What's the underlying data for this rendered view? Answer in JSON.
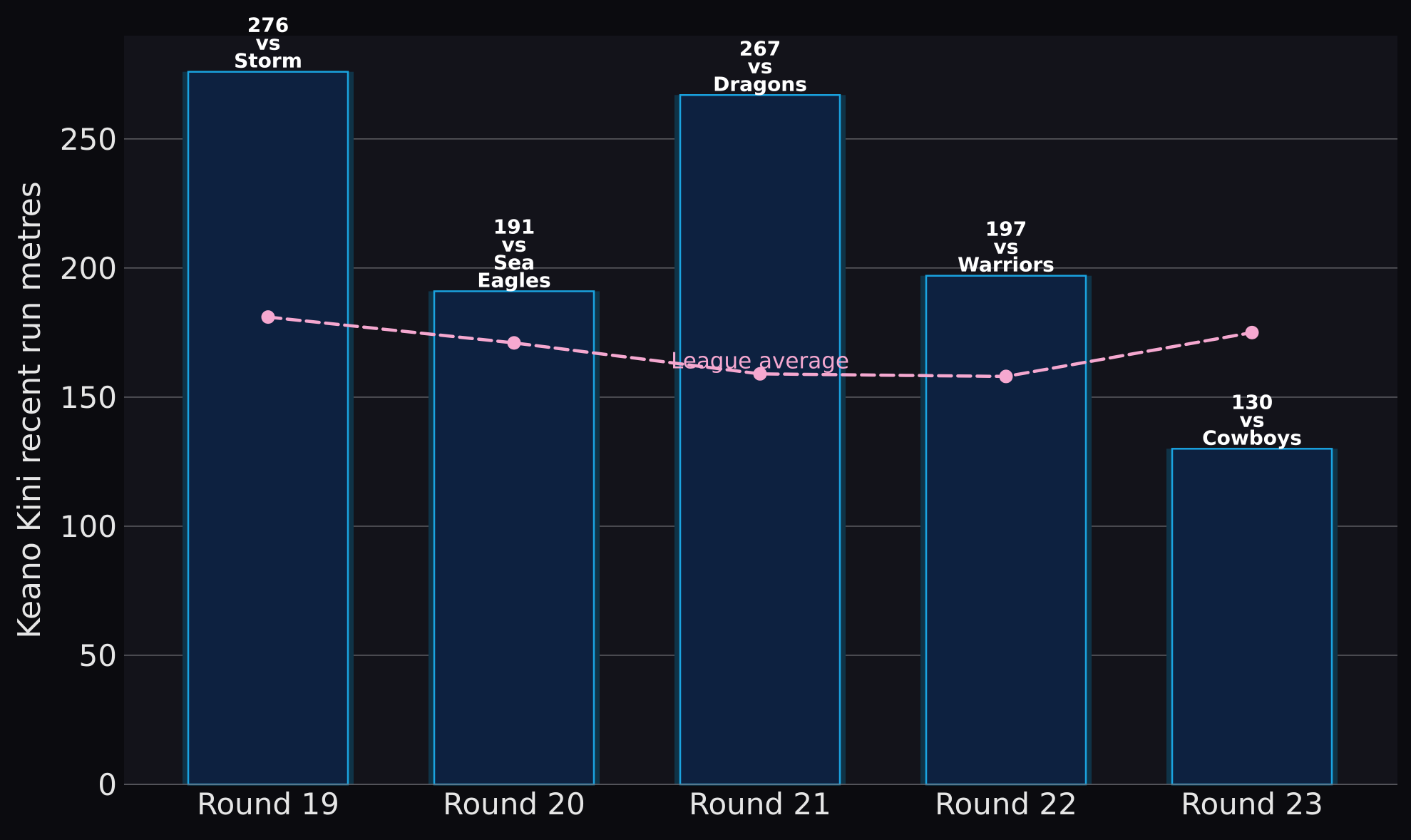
{
  "chart_data": {
    "type": "bar",
    "categories": [
      "Round 19",
      "Round 20",
      "Round 21",
      "Round 22",
      "Round 23"
    ],
    "series": [
      {
        "values": [
          276,
          191,
          267,
          197,
          130
        ]
      },
      {
        "name": "League average",
        "type": "line",
        "values": [
          181,
          171,
          159,
          158,
          175
        ]
      }
    ],
    "bar_labels": [
      [
        "276",
        "vs",
        "Storm"
      ],
      [
        "191",
        "vs",
        "Sea",
        "Eagles"
      ],
      [
        "267",
        "vs",
        "Dragons"
      ],
      [
        "197",
        "vs",
        "Warriors"
      ],
      [
        "130",
        "vs",
        "Cowboys"
      ]
    ],
    "title": "",
    "xlabel": "",
    "ylabel": "Keano Kini recent run metres",
    "ylim": [
      0,
      290
    ],
    "yticks": [
      0,
      50,
      100,
      150,
      200,
      250
    ],
    "grid": true,
    "colors": {
      "page_bg": "#0b0b0f",
      "plot_bg": "#13131a",
      "bar_fill": "#0d2140",
      "bar_edge": "#1aa3e0",
      "bar_glow": "#0f3347",
      "line": "#f5a8d0",
      "grid": "#5a5a5f",
      "tick_text": "#e6e6e6",
      "label_text": "#ffffff"
    }
  }
}
